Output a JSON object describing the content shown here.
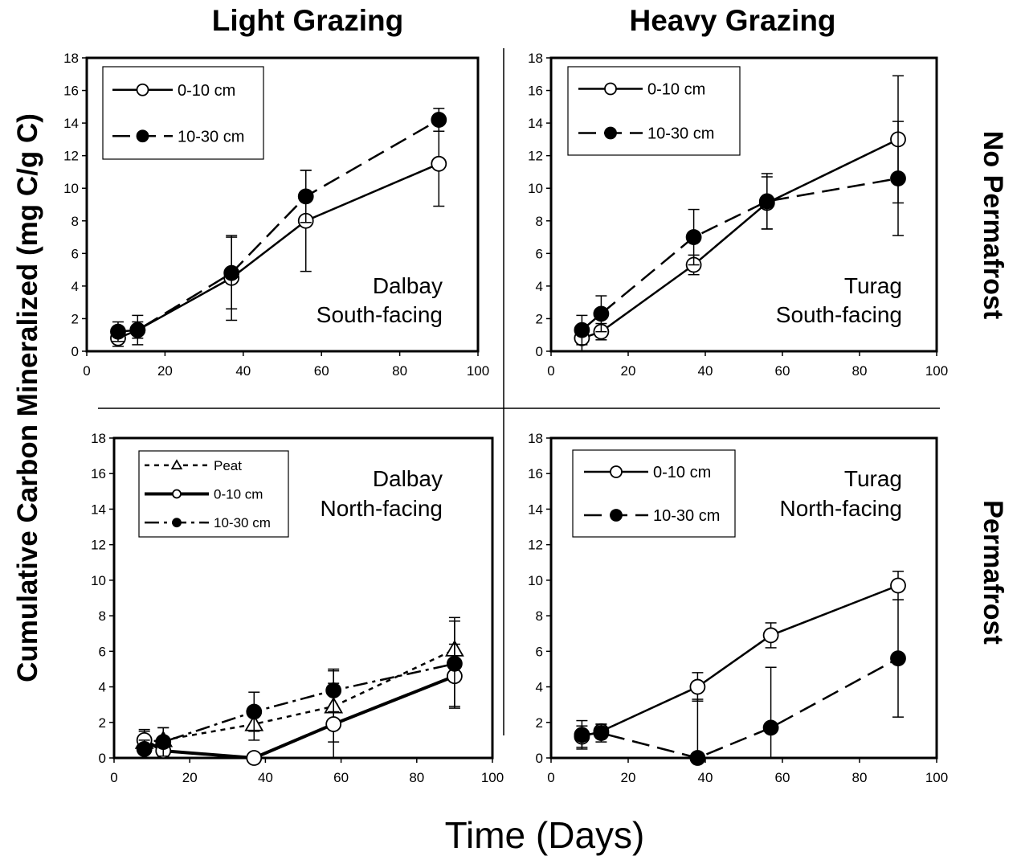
{
  "figure": {
    "col_titles": [
      "Light Grazing",
      "Heavy Grazing"
    ],
    "row_titles": [
      "No Permafrost",
      "Permafrost"
    ],
    "ylabel": "Cumulative Carbon Mineralized (mg C/g C)",
    "xlabel": "Time (Days)"
  },
  "chart_data": [
    {
      "type": "line",
      "panel_label": [
        "Dalbay",
        "South-facing"
      ],
      "xlim": [
        0,
        100
      ],
      "ylim": [
        0,
        18
      ],
      "xticks": [
        0,
        20,
        40,
        60,
        80,
        100
      ],
      "yticks": [
        0,
        2,
        4,
        6,
        8,
        10,
        12,
        14,
        16,
        18
      ],
      "grid": false,
      "legend_position": "top-left",
      "series": [
        {
          "name": "0-10 cm",
          "marker": "circle-open",
          "line": "solid",
          "x": [
            8,
            13,
            37,
            56,
            90
          ],
          "y": [
            0.8,
            1.3,
            4.5,
            8.0,
            11.5
          ],
          "err": [
            0.5,
            0.5,
            2.6,
            3.1,
            2.6
          ]
        },
        {
          "name": "10-30 cm",
          "marker": "circle-filled",
          "line": "dashed",
          "x": [
            8,
            13,
            37,
            56,
            90
          ],
          "y": [
            1.2,
            1.3,
            4.8,
            9.5,
            14.2
          ],
          "err": [
            0.6,
            0.9,
            2.2,
            1.6,
            0.7
          ]
        }
      ]
    },
    {
      "type": "line",
      "panel_label": [
        "Turag",
        "South-facing"
      ],
      "xlim": [
        0,
        100
      ],
      "ylim": [
        0,
        18
      ],
      "xticks": [
        0,
        20,
        40,
        60,
        80,
        100
      ],
      "yticks": [
        0,
        2,
        4,
        6,
        8,
        10,
        12,
        14,
        16,
        18
      ],
      "grid": false,
      "legend_position": "top-left",
      "series": [
        {
          "name": "0-10 cm",
          "marker": "circle-open",
          "line": "solid",
          "x": [
            8,
            13,
            37,
            56,
            90
          ],
          "y": [
            0.8,
            1.2,
            5.3,
            9.1,
            13.0
          ],
          "err": [
            0.8,
            0.5,
            0.6,
            1.6,
            3.9
          ]
        },
        {
          "name": "10-30 cm",
          "marker": "circle-filled",
          "line": "dashed",
          "x": [
            8,
            13,
            37,
            56,
            90
          ],
          "y": [
            1.3,
            2.3,
            7.0,
            9.2,
            10.6
          ],
          "err": [
            0.9,
            1.1,
            1.7,
            1.7,
            3.5
          ]
        }
      ]
    },
    {
      "type": "line",
      "panel_label": [
        "Dalbay",
        "North-facing"
      ],
      "xlim": [
        0,
        100
      ],
      "ylim": [
        0,
        18
      ],
      "xticks": [
        0,
        20,
        40,
        60,
        80,
        100
      ],
      "yticks": [
        0,
        2,
        4,
        6,
        8,
        10,
        12,
        14,
        16,
        18
      ],
      "grid": false,
      "legend_position": "top-left",
      "series": [
        {
          "name": "Peat",
          "marker": "triangle-open",
          "line": "dotted",
          "x": [
            8,
            13,
            37,
            58,
            90
          ],
          "y": [
            0.9,
            1.0,
            1.9,
            2.9,
            6.1
          ],
          "err": [
            0.6,
            0.7,
            0.9,
            2.0,
            1.8
          ]
        },
        {
          "name": "0-10 cm",
          "marker": "circle-open",
          "line": "solid-thick",
          "x": [
            8,
            13,
            37,
            58,
            90
          ],
          "y": [
            1.0,
            0.4,
            0.0,
            1.9,
            4.6
          ],
          "err": [
            0.6,
            0.3,
            0.1,
            2.3,
            1.8
          ]
        },
        {
          "name": "10-30 cm",
          "marker": "circle-filled",
          "line": "dashdot",
          "x": [
            8,
            13,
            37,
            58,
            90
          ],
          "y": [
            0.5,
            0.9,
            2.6,
            3.8,
            5.3
          ],
          "err": [
            0.5,
            0.8,
            1.1,
            1.2,
            2.4
          ]
        }
      ]
    },
    {
      "type": "line",
      "panel_label": [
        "Turag",
        "North-facing"
      ],
      "xlim": [
        0,
        100
      ],
      "ylim": [
        0,
        18
      ],
      "xticks": [
        0,
        20,
        40,
        60,
        80,
        100
      ],
      "yticks": [
        0,
        2,
        4,
        6,
        8,
        10,
        12,
        14,
        16,
        18
      ],
      "grid": false,
      "legend_position": "top-left",
      "series": [
        {
          "name": "0-10 cm",
          "marker": "circle-open",
          "line": "solid",
          "x": [
            8,
            13,
            38,
            57,
            90
          ],
          "y": [
            1.2,
            1.5,
            4.0,
            6.9,
            9.7
          ],
          "err": [
            0.6,
            0.4,
            0.8,
            0.7,
            0.8
          ]
        },
        {
          "name": "10-30 cm",
          "marker": "circle-filled",
          "line": "dashed",
          "x": [
            8,
            13,
            38,
            57,
            90
          ],
          "y": [
            1.3,
            1.4,
            0.0,
            1.7,
            5.6
          ],
          "err": [
            0.8,
            0.5,
            3.3,
            3.4,
            3.3
          ]
        }
      ]
    }
  ]
}
